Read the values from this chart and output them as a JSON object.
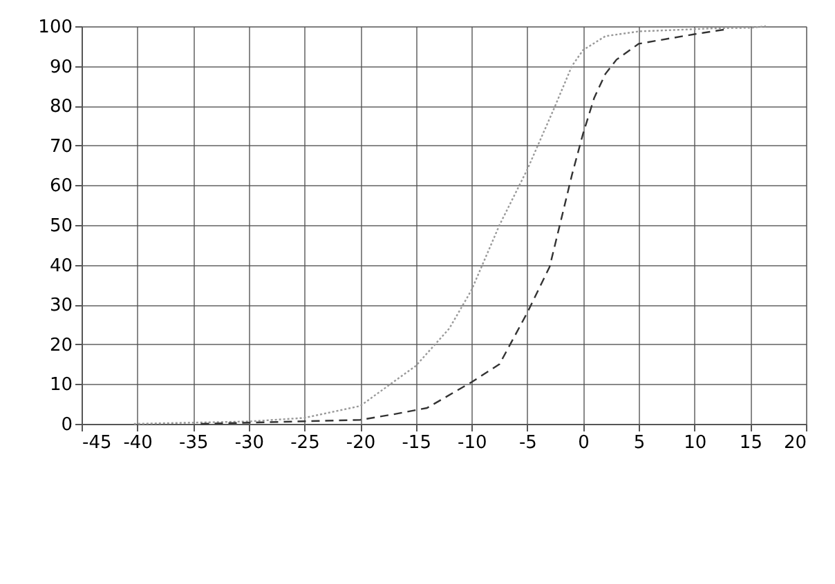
{
  "chart_data": {
    "type": "line",
    "xlim": [
      -45,
      20
    ],
    "xticks": [
      -45,
      -40,
      -35,
      -30,
      -25,
      -20,
      -15,
      -10,
      -5,
      0,
      5,
      10,
      15,
      20
    ],
    "ylim": [
      0,
      100
    ],
    "yticks": [
      0,
      10,
      20,
      30,
      40,
      50,
      60,
      70,
      80,
      90,
      100
    ],
    "grid": true,
    "series": [
      {
        "color": "#999999",
        "line_style": "dotted",
        "x": [
          -40.3,
          -30,
          -25,
          -20,
          -15,
          -12,
          -10,
          -7.5,
          -5,
          -2.5,
          -1,
          0,
          2,
          5,
          12,
          15,
          16.4
        ],
        "values": [
          0,
          0.6,
          1.5,
          4.5,
          14.6,
          24,
          33.7,
          50,
          64,
          80,
          90,
          94,
          97.5,
          98.7,
          99.5,
          99.6,
          100
        ]
      },
      {
        "color": "#333333",
        "line_style": "dashed",
        "x": [
          -34.3,
          -20,
          -17,
          -14,
          -10,
          -7.5,
          -5,
          -3,
          -2,
          -1,
          0,
          1,
          2,
          3,
          5,
          10,
          13
        ],
        "values": [
          0,
          1,
          2.4,
          4,
          10.5,
          15,
          28,
          39.5,
          51,
          62.6,
          73,
          82,
          88,
          91.6,
          95.6,
          98,
          99.3
        ]
      }
    ]
  }
}
